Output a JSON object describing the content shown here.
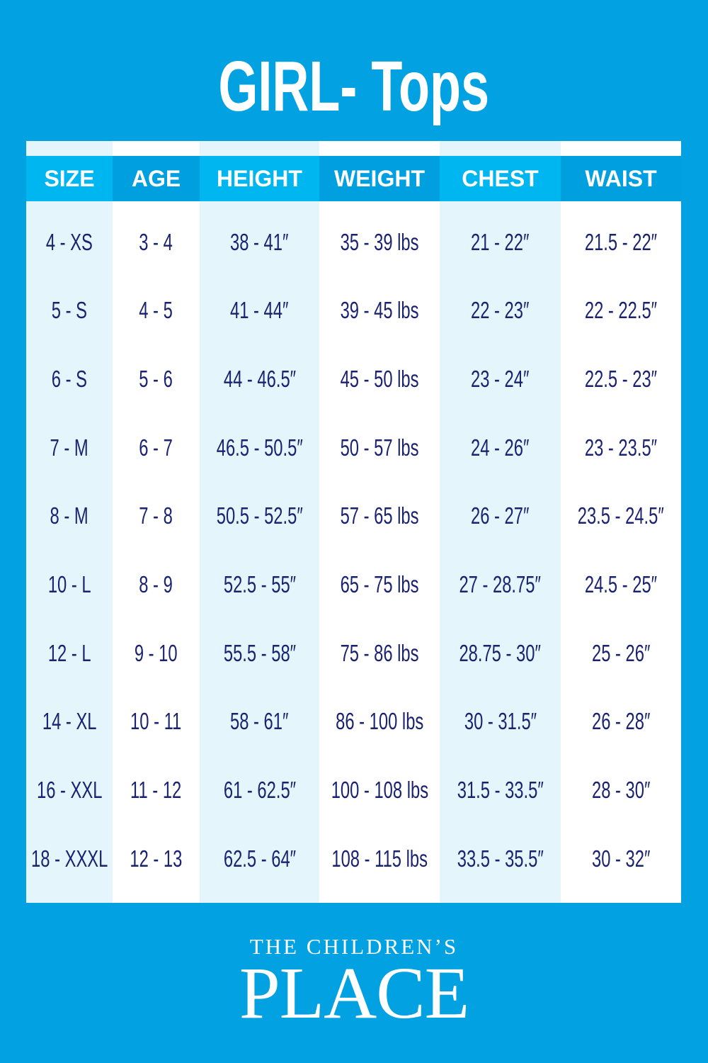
{
  "title": "GIRL- Tops",
  "table": {
    "headers": [
      "SIZE",
      "AGE",
      "HEIGHT",
      "WEIGHT",
      "CHEST",
      "WAIST"
    ],
    "rows": [
      [
        "4 - XS",
        "3 - 4",
        "38 - 41″",
        "35 - 39 lbs",
        "21 - 22″",
        "21.5 - 22″"
      ],
      [
        "5 - S",
        "4 - 5",
        "41 - 44″",
        "39 - 45 lbs",
        "22 - 23″",
        "22 - 22.5″"
      ],
      [
        "6 - S",
        "5 - 6",
        "44 - 46.5″",
        "45 - 50 lbs",
        "23 - 24″",
        "22.5 - 23″"
      ],
      [
        "7 - M",
        "6 - 7",
        "46.5 - 50.5″",
        "50 - 57 lbs",
        "24 - 26″",
        "23 - 23.5″"
      ],
      [
        "8 - M",
        "7 - 8",
        "50.5 - 52.5″",
        "57 - 65 lbs",
        "26 - 27″",
        "23.5 - 24.5″"
      ],
      [
        "10 - L",
        "8 - 9",
        "52.5 - 55″",
        "65 - 75 lbs",
        "27 - 28.75″",
        "24.5 - 25″"
      ],
      [
        "12 - L",
        "9 - 10",
        "55.5 - 58″",
        "75 - 86 lbs",
        "28.75 - 30″",
        "25 - 26″"
      ],
      [
        "14 - XL",
        "10 - 11",
        "58 - 61″",
        "86 - 100 lbs",
        "30 - 31.5″",
        "26 - 28″"
      ],
      [
        "16 - XXL",
        "11 - 12",
        "61 - 62.5″",
        "100 - 108 lbs",
        "31.5 - 33.5″",
        "28 - 30″"
      ],
      [
        "18 - XXXL",
        "12 - 13",
        "62.5 - 64″",
        "108 - 115 lbs",
        "33.5 - 35.5″",
        "30 - 32″"
      ]
    ]
  },
  "logo": {
    "line1": "THE CHILDREN’S",
    "line2": "PLACE"
  },
  "colors": {
    "background": "#02a1e2",
    "header_light": "#00b6f0",
    "header_dark": "#00a0e0",
    "text": "#1b2371"
  }
}
